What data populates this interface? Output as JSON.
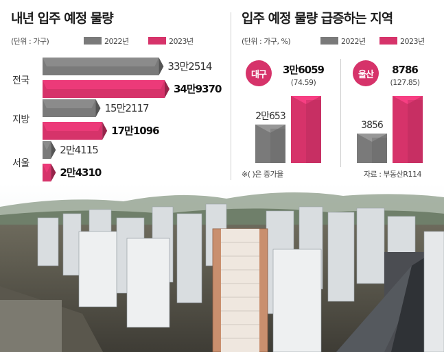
{
  "left_panel": {
    "title": "내년 입주 예정 물량",
    "unit": "(단위 : 가구)",
    "legend": [
      {
        "label": "2022년",
        "color": "#7a7a7a"
      },
      {
        "label": "2023년",
        "color": "#d6336a"
      }
    ]
  },
  "right_panel": {
    "title": "입주 예정 물량 급증하는 지역",
    "unit": "(단위 : 가구, %)",
    "legend": [
      {
        "label": "2022년",
        "color": "#7a7a7a"
      },
      {
        "label": "2023년",
        "color": "#d6336a"
      }
    ],
    "note": "※( )은 증가율",
    "source": "자료 : 부동산R114"
  },
  "chart_data": [
    {
      "type": "bar",
      "orientation": "horizontal",
      "title": "내년 입주 예정 물량",
      "unit": "(단위 : 가구)",
      "categories": [
        "전국",
        "지방",
        "서울"
      ],
      "series": [
        {
          "name": "2022년",
          "values": [
            332514,
            152117,
            24115
          ],
          "labels": [
            "33만2514",
            "15만2117",
            "2만4115"
          ],
          "color": "#7a7a7a"
        },
        {
          "name": "2023년",
          "values": [
            349370,
            171096,
            24310
          ],
          "labels": [
            "34만9370",
            "17만1096",
            "2만4310"
          ],
          "color": "#d6336a"
        }
      ]
    },
    {
      "type": "bar",
      "orientation": "vertical",
      "title": "입주 예정 물량 급증하는 지역",
      "unit": "(단위 : 가구, %)",
      "groups": [
        {
          "region": "대구",
          "v2022": 20653,
          "v2023": 36059,
          "label2022": "2만653",
          "label2023": "3만6059",
          "rate": "(74.59)"
        },
        {
          "region": "울산",
          "v2022": 3856,
          "v2023": 8786,
          "label2022": "3856",
          "label2023": "8786",
          "rate": "(127.85)"
        }
      ]
    }
  ]
}
